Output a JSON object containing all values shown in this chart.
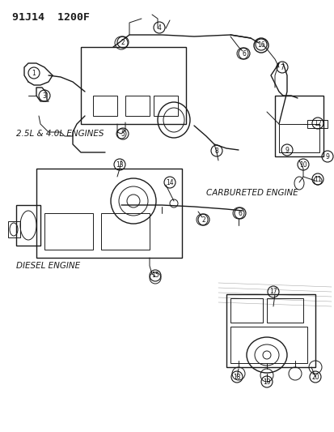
{
  "title": "91J14  1200F",
  "bg_color": "#ffffff",
  "line_color": "#1a1a1a",
  "label_color": "#111111",
  "labels": {
    "top_section": "2.5L & 4.0L ENGINES",
    "mid_section": "CARBURETED ENGINE",
    "bot_section": "DIESEL ENGINE"
  },
  "part_numbers": [
    1,
    2,
    3,
    4,
    5,
    6,
    7,
    8,
    9,
    10,
    11,
    12,
    13,
    14,
    15,
    16,
    17,
    18,
    19,
    20
  ],
  "figsize": [
    4.14,
    5.33
  ],
  "dpi": 100
}
